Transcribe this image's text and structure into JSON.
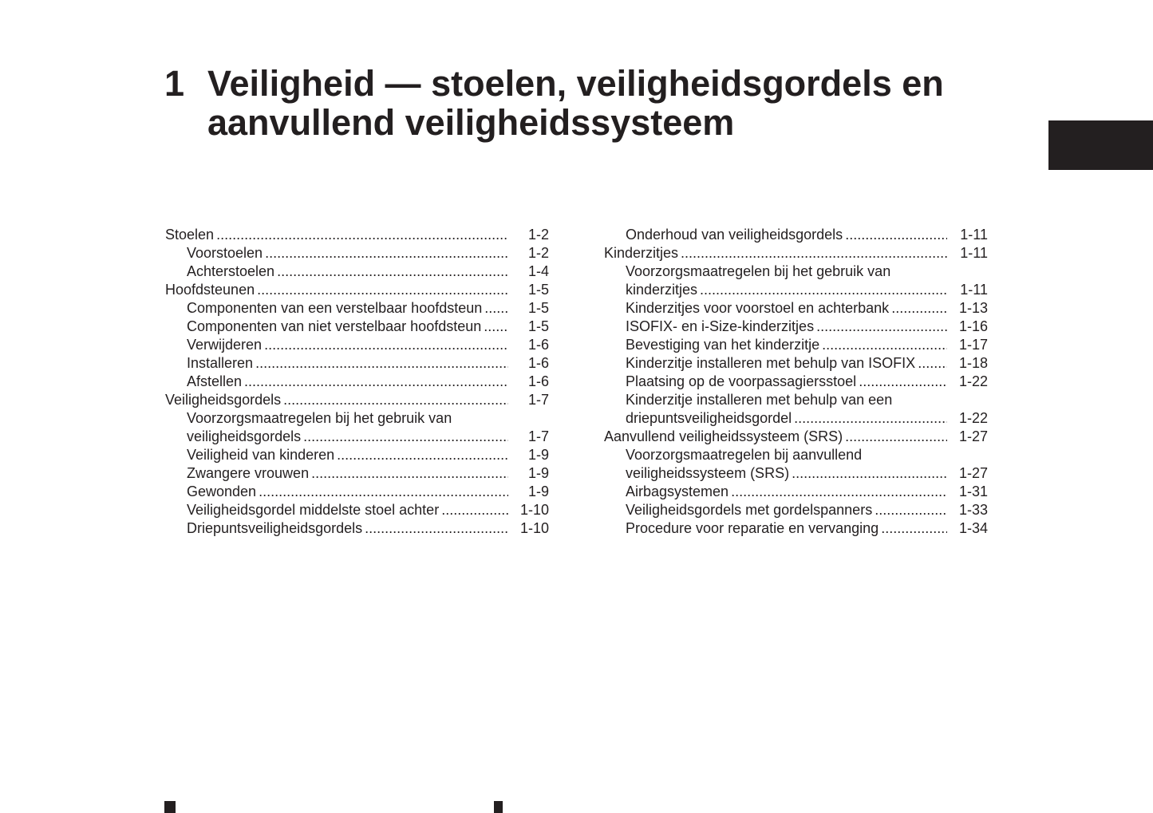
{
  "chapter": {
    "number": "1",
    "title": "Veiligheid — stoelen, veiligheidsgordels en aanvullend veiligheidssysteem"
  },
  "toc_left": [
    {
      "text": "Stoelen",
      "page": "1-2",
      "level": 1
    },
    {
      "text": "Voorstoelen",
      "page": "1-2",
      "level": 2
    },
    {
      "text": "Achterstoelen",
      "page": "1-4",
      "level": 2
    },
    {
      "text": "Hoofdsteunen",
      "page": "1-5",
      "level": 1
    },
    {
      "text": "Componenten van een verstelbaar hoofdsteun",
      "page": "1-5",
      "level": 2
    },
    {
      "text": "Componenten van niet verstelbaar hoofdsteun",
      "page": "1-5",
      "level": 2
    },
    {
      "text": "Verwijderen",
      "page": "1-6",
      "level": 2
    },
    {
      "text": "Installeren",
      "page": "1-6",
      "level": 2
    },
    {
      "text": "Afstellen",
      "page": "1-6",
      "level": 2
    },
    {
      "text": "Veiligheidsgordels",
      "page": "1-7",
      "level": 1
    },
    {
      "text": "Voorzorgsmaatregelen bij het gebruik van",
      "page": "",
      "level": 2
    },
    {
      "text": "veiligheidsgordels",
      "page": "1-7",
      "level": 2
    },
    {
      "text": "Veiligheid van kinderen",
      "page": "1-9",
      "level": 2
    },
    {
      "text": "Zwangere vrouwen",
      "page": "1-9",
      "level": 2
    },
    {
      "text": "Gewonden",
      "page": "1-9",
      "level": 2
    },
    {
      "text": "Veiligheidsgordel middelste stoel achter",
      "page": "1-10",
      "level": 2
    },
    {
      "text": "Driepuntsveiligheidsgordels",
      "page": "1-10",
      "level": 2
    }
  ],
  "toc_right": [
    {
      "text": "Onderhoud van veiligheidsgordels",
      "page": "1-11",
      "level": 2
    },
    {
      "text": "Kinderzitjes",
      "page": "1-11",
      "level": 1
    },
    {
      "text": "Voorzorgsmaatregelen bij het gebruik van",
      "page": "",
      "level": 2
    },
    {
      "text": "kinderzitjes",
      "page": "1-11",
      "level": 2
    },
    {
      "text": "Kinderzitjes voor voorstoel en achterbank",
      "page": "1-13",
      "level": 2
    },
    {
      "text": "ISOFIX- en i-Size-kinderzitjes",
      "page": "1-16",
      "level": 2
    },
    {
      "text": "Bevestiging van het kinderzitje",
      "page": "1-17",
      "level": 2
    },
    {
      "text": "Kinderzitje installeren met behulp van ISOFIX",
      "page": "1-18",
      "level": 2
    },
    {
      "text": "Plaatsing op de voorpassagiersstoel",
      "page": "1-22",
      "level": 2
    },
    {
      "text": "Kinderzitje installeren met behulp van een",
      "page": "",
      "level": 2
    },
    {
      "text": "driepuntsveiligheidsgordel",
      "page": "1-22",
      "level": 2
    },
    {
      "text": "Aanvullend veiligheidssysteem (SRS)",
      "page": "1-27",
      "level": 1
    },
    {
      "text": "Voorzorgsmaatregelen bij aanvullend",
      "page": "",
      "level": 2
    },
    {
      "text": "veiligheidssysteem (SRS)",
      "page": "1-27",
      "level": 2
    },
    {
      "text": "Airbagsystemen",
      "page": "1-31",
      "level": 2
    },
    {
      "text": "Veiligheidsgordels met gordelspanners",
      "page": "1-33",
      "level": 2
    },
    {
      "text": "Procedure voor reparatie en vervanging",
      "page": "1-34",
      "level": 2
    }
  ],
  "colors": {
    "text": "#231f20",
    "tab": "#231f20"
  }
}
